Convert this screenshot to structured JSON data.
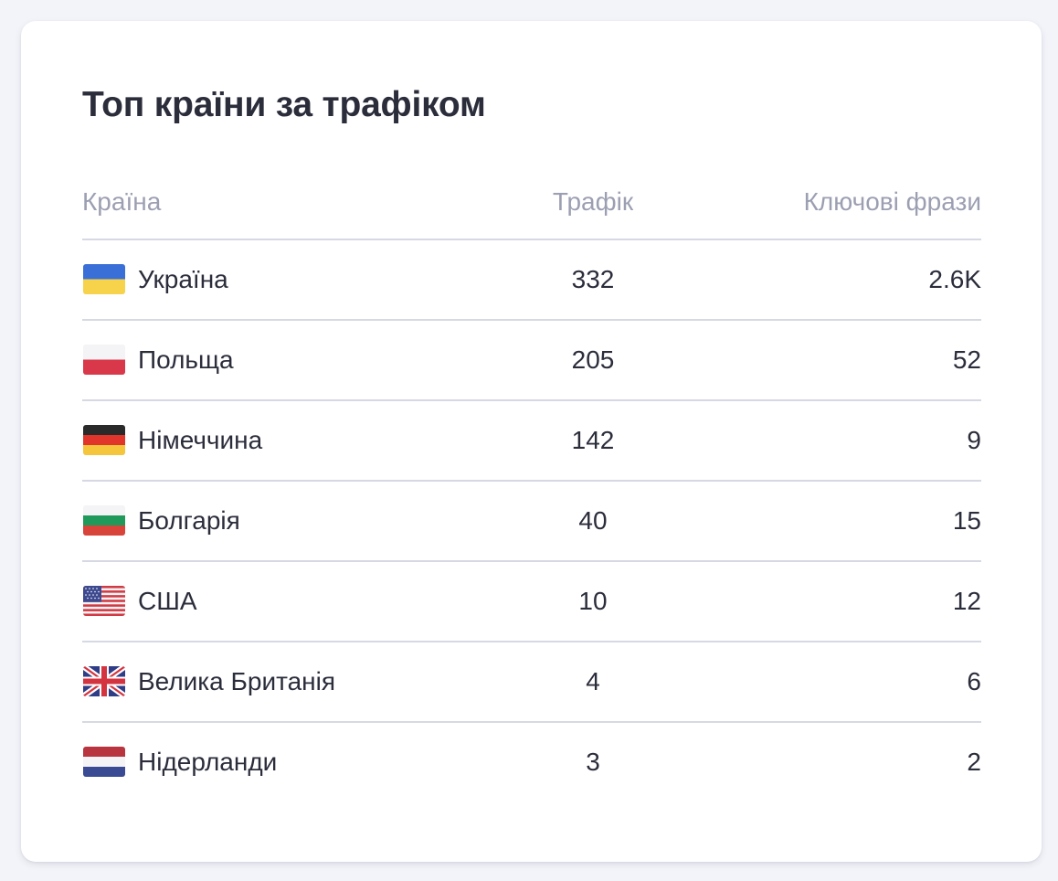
{
  "widget": {
    "title": "Топ країни за трафіком",
    "columns": {
      "country": "Країна",
      "traffic": "Трафік",
      "keywords": "Ключові фрази"
    },
    "rows": [
      {
        "flag_icon": "ukraine-flag-icon",
        "country": "Україна",
        "traffic": "332",
        "keywords": "2.6K"
      },
      {
        "flag_icon": "poland-flag-icon",
        "country": "Польща",
        "traffic": "205",
        "keywords": "52"
      },
      {
        "flag_icon": "germany-flag-icon",
        "country": "Німеччина",
        "traffic": "142",
        "keywords": "9"
      },
      {
        "flag_icon": "bulgaria-flag-icon",
        "country": "Болгарія",
        "traffic": "40",
        "keywords": "15"
      },
      {
        "flag_icon": "usa-flag-icon",
        "country": "США",
        "traffic": "10",
        "keywords": "12"
      },
      {
        "flag_icon": "uk-flag-icon",
        "country": "Велика Британія",
        "traffic": "4",
        "keywords": "6"
      },
      {
        "flag_icon": "netherlands-flag-icon",
        "country": "Нідерланди",
        "traffic": "3",
        "keywords": "2"
      }
    ]
  },
  "colors": {
    "title": "#2b2d3b",
    "text": "#2b2d3b",
    "header_text": "#9c9fb2",
    "divider": "#d6d8e3",
    "card_bg": "#ffffff",
    "page_bg": "#f3f4f9"
  }
}
